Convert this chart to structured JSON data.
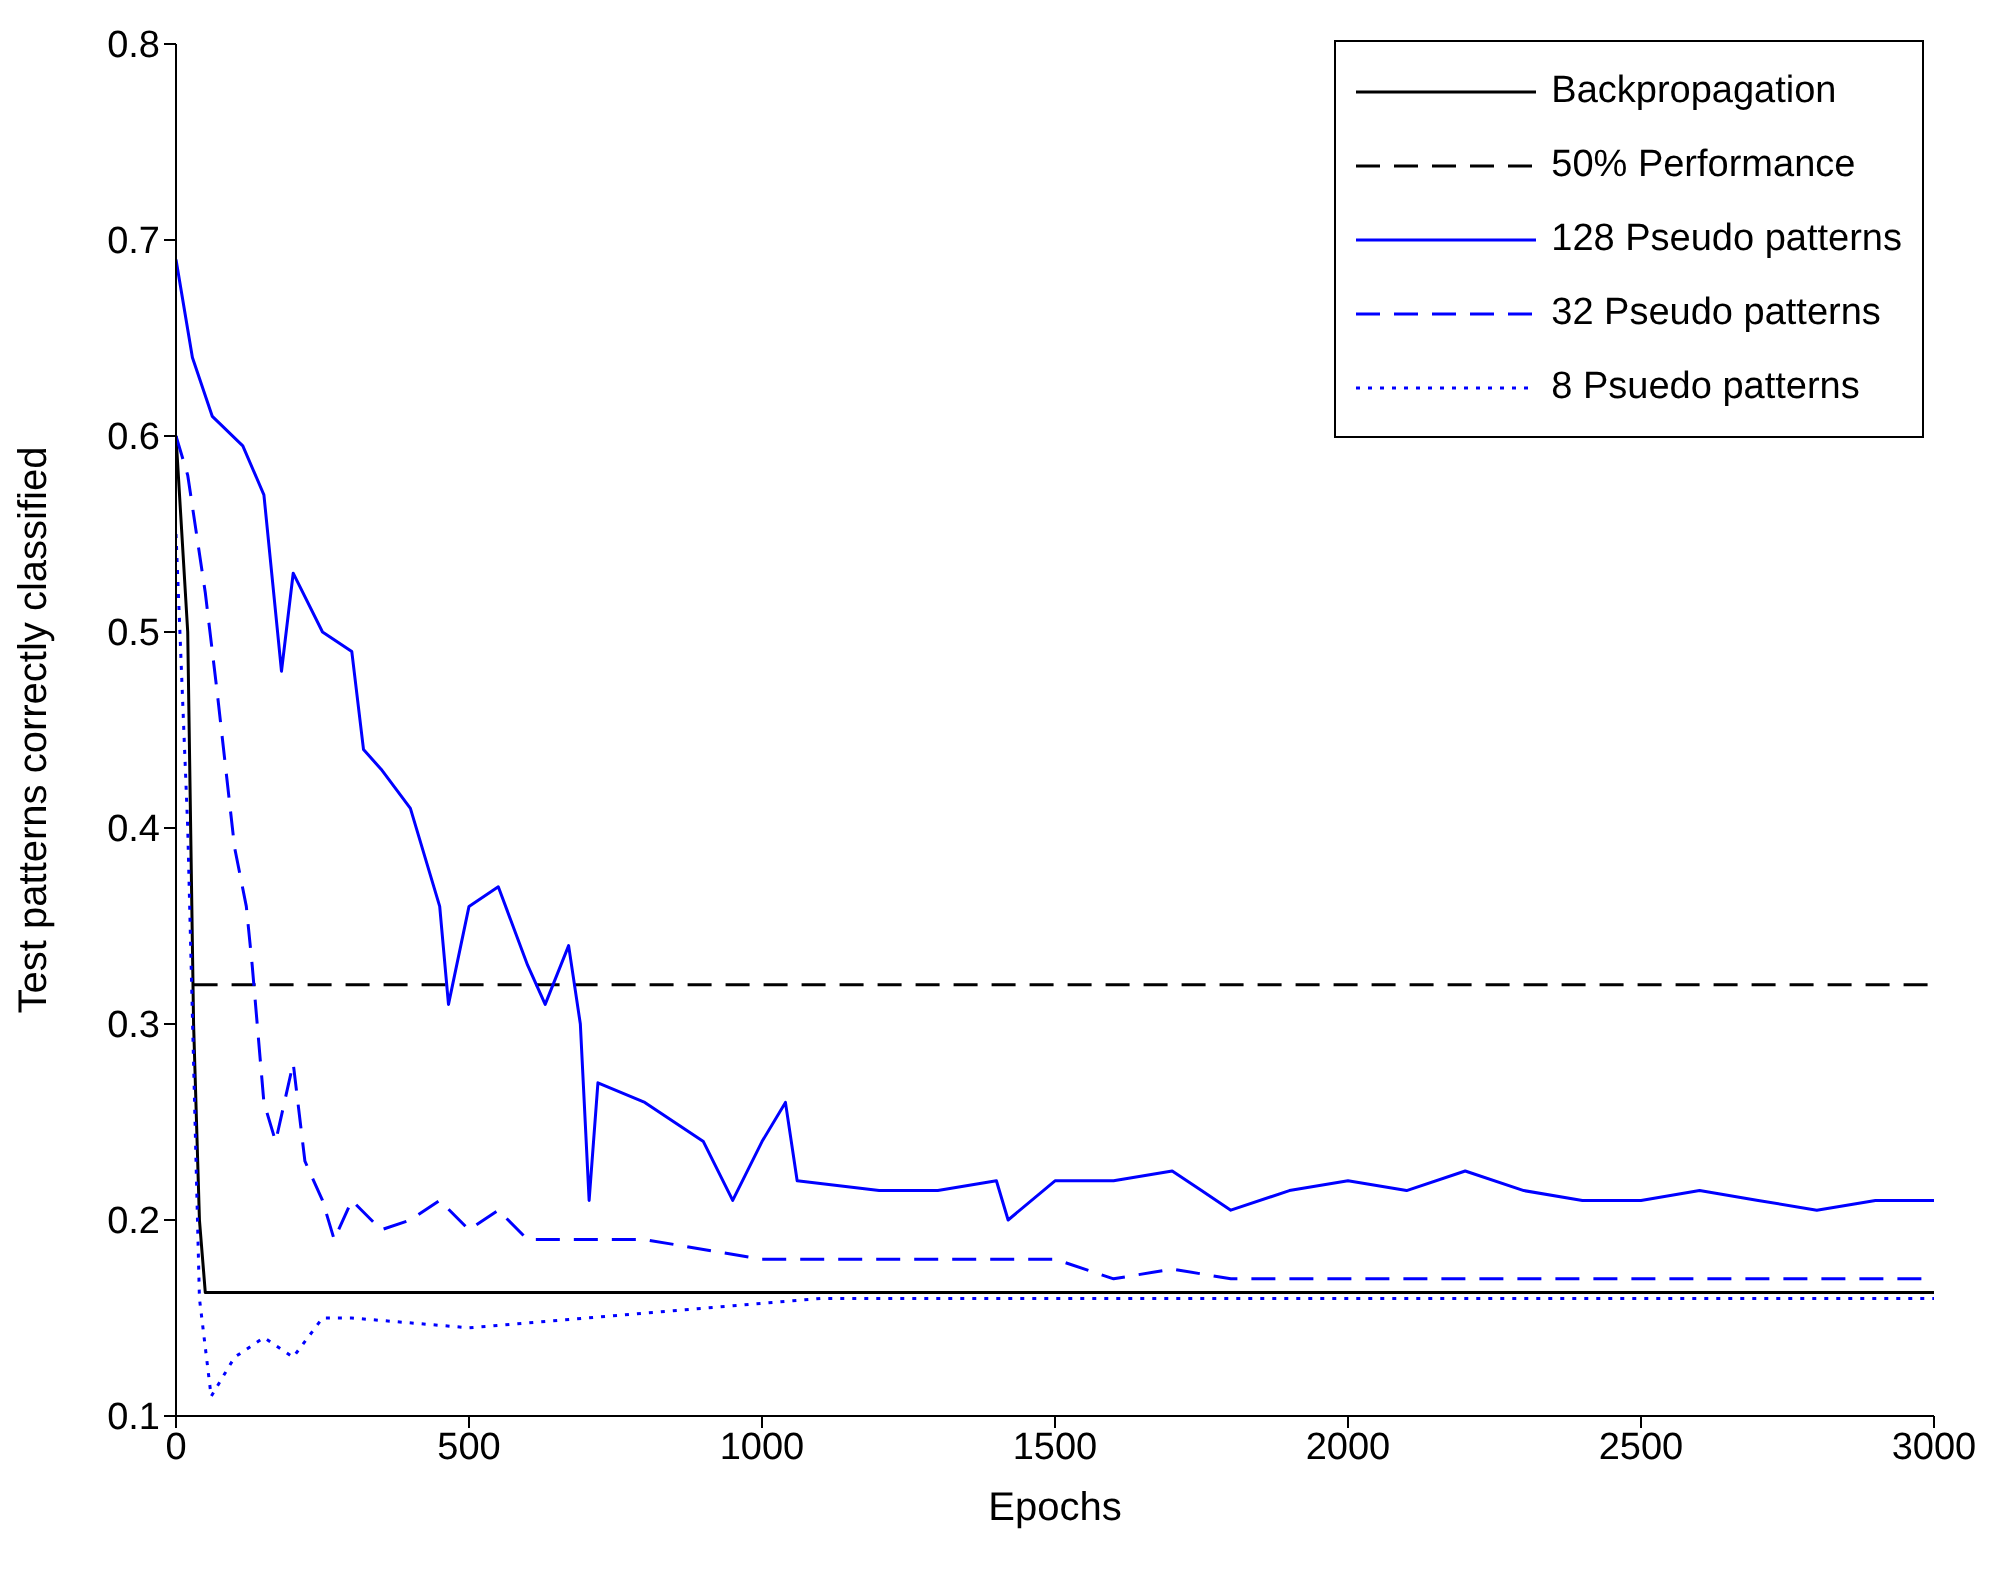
{
  "chart_data": {
    "type": "line",
    "xlabel": "Epochs",
    "ylabel": "Test patterns correctly classified",
    "xlim": [
      0,
      3000
    ],
    "xticks": [
      0,
      500,
      1000,
      1500,
      2000,
      2500,
      3000
    ],
    "ylim": [
      0.1,
      0.8
    ],
    "yticks": [
      0.1,
      0.2,
      0.3,
      0.4,
      0.5,
      0.6,
      0.7,
      0.8
    ],
    "legend": "top right",
    "grid": false,
    "marker": "none",
    "series": [
      {
        "name": "Backpropagation",
        "color": "#000000",
        "line_style": "solid",
        "x": [
          0,
          20,
          30,
          40,
          50,
          3000
        ],
        "values": [
          0.6,
          0.5,
          0.3,
          0.2,
          0.163,
          0.163
        ]
      },
      {
        "name": "50% Performance",
        "color": "#000000",
        "line_style": "dashed",
        "x": [
          30,
          3000
        ],
        "values": [
          0.32,
          0.32
        ]
      },
      {
        "name": "128 Pseudo patterns",
        "color": "#0000ff",
        "line_style": "solid",
        "x": [
          0,
          28,
          62,
          114,
          150,
          180,
          200,
          250,
          300,
          320,
          350,
          400,
          450,
          465,
          500,
          550,
          600,
          630,
          670,
          690,
          705,
          720,
          800,
          900,
          950,
          1000,
          1040,
          1060,
          1200,
          1300,
          1400,
          1420,
          1500,
          1600,
          1700,
          1750,
          1800,
          1900,
          2000,
          2100,
          2200,
          2300,
          2400,
          2500,
          2600,
          2700,
          2800,
          2900,
          3000
        ],
        "values": [
          0.69,
          0.64,
          0.61,
          0.595,
          0.57,
          0.48,
          0.53,
          0.5,
          0.49,
          0.44,
          0.43,
          0.41,
          0.36,
          0.31,
          0.36,
          0.37,
          0.33,
          0.31,
          0.34,
          0.3,
          0.21,
          0.27,
          0.26,
          0.24,
          0.21,
          0.24,
          0.26,
          0.22,
          0.215,
          0.215,
          0.22,
          0.2,
          0.22,
          0.22,
          0.225,
          0.215,
          0.205,
          0.215,
          0.22,
          0.215,
          0.225,
          0.215,
          0.21,
          0.21,
          0.215,
          0.21,
          0.205,
          0.21,
          0.21
        ]
      },
      {
        "name": "32 Pseudo patterns",
        "color": "#0000ff",
        "line_style": "dashed",
        "x": [
          0,
          20,
          50,
          70,
          100,
          120,
          130,
          150,
          170,
          200,
          220,
          250,
          270,
          300,
          350,
          400,
          450,
          500,
          550,
          600,
          700,
          800,
          900,
          1000,
          1200,
          1400,
          1500,
          1600,
          1700,
          1800,
          2000,
          2500,
          3000
        ],
        "values": [
          0.6,
          0.58,
          0.52,
          0.47,
          0.39,
          0.36,
          0.33,
          0.26,
          0.24,
          0.28,
          0.23,
          0.21,
          0.19,
          0.21,
          0.195,
          0.2,
          0.21,
          0.195,
          0.205,
          0.19,
          0.19,
          0.19,
          0.185,
          0.18,
          0.18,
          0.18,
          0.18,
          0.17,
          0.175,
          0.17,
          0.17,
          0.17,
          0.17
        ]
      },
      {
        "name": "8 Psuedo patterns",
        "color": "#0000ff",
        "line_style": "dotted",
        "x": [
          0,
          20,
          40,
          60,
          100,
          150,
          200,
          250,
          300,
          500,
          700,
          900,
          1100,
          3000
        ],
        "values": [
          0.55,
          0.4,
          0.16,
          0.11,
          0.13,
          0.14,
          0.13,
          0.15,
          0.15,
          0.145,
          0.15,
          0.155,
          0.16,
          0.16
        ]
      }
    ]
  }
}
